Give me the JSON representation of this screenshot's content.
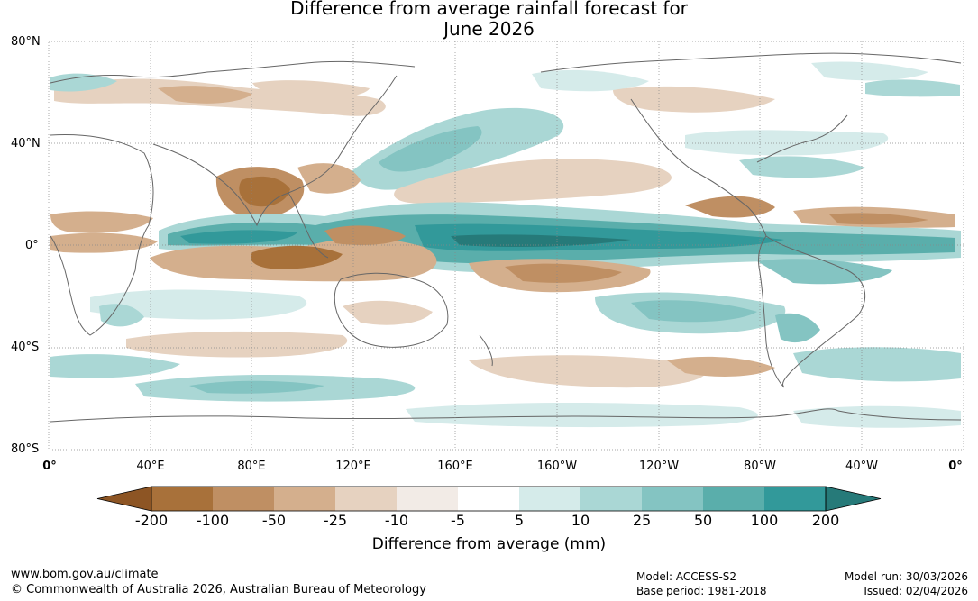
{
  "title": {
    "line1": "Difference from average rainfall forecast for",
    "line2": "June 2026"
  },
  "map": {
    "lat_labels": [
      "80°N",
      "40°N",
      "0°",
      "40°S",
      "80°S"
    ],
    "lon_labels": [
      "0°",
      "40°E",
      "80°E",
      "120°E",
      "160°E",
      "160°W",
      "120°W",
      "80°W",
      "40°W",
      "0°"
    ]
  },
  "colorbar": {
    "title": "Difference from average (mm)",
    "ticks": [
      "-200",
      "-100",
      "-50",
      "-25",
      "-10",
      "-5",
      "5",
      "10",
      "25",
      "50",
      "100",
      "200"
    ],
    "colors": [
      "#8d5524",
      "#a8713a",
      "#bf8f63",
      "#d4af8d",
      "#e6d2c0",
      "#f2ebe6",
      "#ffffff",
      "#d5ebea",
      "#aad7d5",
      "#84c4c2",
      "#5aaeab",
      "#32999a",
      "#267a79"
    ]
  },
  "footer": {
    "url": "www.bom.gov.au/climate",
    "copyright": "© Commonwealth of Australia 2026, Australian Bureau of Meteorology",
    "model": "Model: ACCESS-S2",
    "base_period": "Base period: 1981-2018",
    "model_run": "Model run: 30/03/2026",
    "issued": "Issued: 02/04/2026"
  }
}
